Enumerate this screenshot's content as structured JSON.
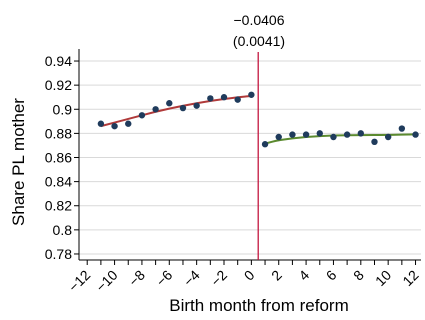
{
  "chart_data": {
    "type": "scatter",
    "xlabel": "Birth month from reform",
    "ylabel": "Share PL mother",
    "xlim": [
      -12.6,
      12.4
    ],
    "ylim": [
      0.775,
      0.945
    ],
    "yticks": [
      0.78,
      0.8,
      0.82,
      0.84,
      0.86,
      0.88,
      0.9,
      0.92,
      0.94
    ],
    "ytick_labels": [
      "0.78",
      "0.8",
      "0.82",
      "0.84",
      "0.86",
      "0.88",
      "0.9",
      "0.92",
      "0.94"
    ],
    "xticks": [
      -12,
      -11,
      -10,
      -9,
      -8,
      -7,
      -6,
      -5,
      -4,
      -3,
      -2,
      -1,
      0,
      1,
      2,
      3,
      4,
      5,
      6,
      7,
      8,
      9,
      10,
      11,
      12
    ],
    "xtick_labels": [
      "-12",
      "",
      "-10",
      "",
      "-8",
      "",
      "-6",
      "",
      "-4",
      "",
      "-2",
      "",
      "0",
      "",
      "2",
      "",
      "4",
      "",
      "6",
      "",
      "8",
      "",
      "10",
      "",
      "12"
    ],
    "grid": true,
    "reform_line_x": 0.5,
    "annotation": {
      "estimate": "−0.0406",
      "se": "(0.0041)"
    },
    "points": {
      "x": [
        -11,
        -10,
        -9,
        -8,
        -7,
        -6,
        -5,
        -4,
        -3,
        -2,
        -1,
        0,
        1,
        2,
        3,
        4,
        5,
        6,
        7,
        8,
        9,
        10,
        11,
        12
      ],
      "y": [
        0.888,
        0.886,
        0.888,
        0.895,
        0.9,
        0.905,
        0.901,
        0.903,
        0.909,
        0.91,
        0.908,
        0.912,
        0.871,
        0.877,
        0.879,
        0.879,
        0.88,
        0.877,
        0.879,
        0.88,
        0.873,
        0.877,
        0.884,
        0.879
      ],
      "color": "#1f3b5c"
    },
    "fit_left": {
      "x": [
        -11,
        -9,
        -7,
        -5,
        -3,
        -1,
        0
      ],
      "y": [
        0.886,
        0.892,
        0.898,
        0.903,
        0.907,
        0.91,
        0.911
      ],
      "color": "#b03a3a"
    },
    "fit_right": {
      "x": [
        1,
        2,
        4,
        6,
        8,
        10,
        12
      ],
      "y": [
        0.8715,
        0.8745,
        0.8772,
        0.8783,
        0.8786,
        0.8787,
        0.8792
      ],
      "color": "#5b8a2f"
    },
    "reform_line_color": "#c4163f"
  }
}
